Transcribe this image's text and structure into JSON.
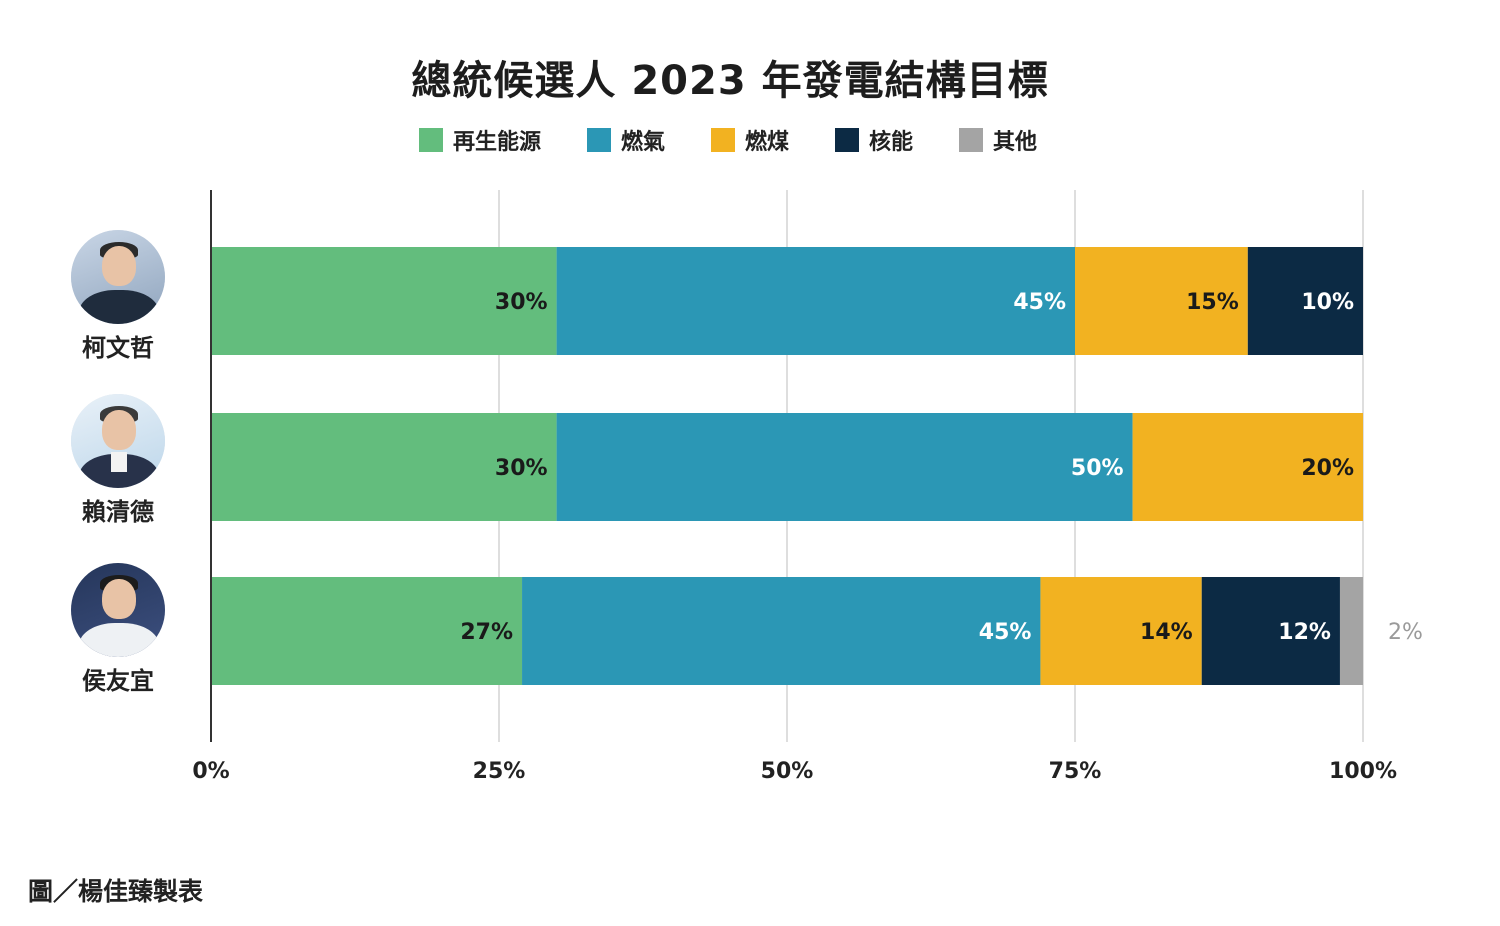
{
  "chart_data": {
    "type": "bar",
    "orientation": "horizontal",
    "stacked": true,
    "title": "總統候選人 2023 年發電結構目標",
    "categories": [
      "柯文哲",
      "賴清德",
      "侯友宜"
    ],
    "series": [
      {
        "name": "再生能源",
        "color": "#63bd7d",
        "values": [
          30,
          30,
          27
        ],
        "labels": [
          "30%",
          "30%",
          "27%"
        ]
      },
      {
        "name": "燃氣",
        "color": "#2b97b5",
        "values": [
          45,
          50,
          45
        ],
        "labels": [
          "45%",
          "50%",
          "45%"
        ]
      },
      {
        "name": "燃煤",
        "color": "#f2b221",
        "values": [
          15,
          20,
          14
        ],
        "labels": [
          "15%",
          "20%",
          "14%"
        ]
      },
      {
        "name": "核能",
        "color": "#0c2a44",
        "values": [
          10,
          0,
          12
        ],
        "labels": [
          "10%",
          "",
          "12%"
        ]
      },
      {
        "name": "其他",
        "color": "#a4a4a4",
        "values": [
          0,
          0,
          2
        ],
        "labels": [
          "",
          "",
          "2%"
        ]
      }
    ],
    "label_colors": {
      "再生能源": "#1a1a1a",
      "燃氣": "#ffffff",
      "燃煤": "#1a1a1a",
      "核能": "#ffffff",
      "其他": "#9a9a9a"
    },
    "xlim": [
      0,
      100
    ],
    "xticks": [
      "0%",
      "25%",
      "50%",
      "75%",
      "100%"
    ],
    "grid": true,
    "legend_position": "top"
  },
  "candidates": [
    {
      "name": "柯文哲",
      "avatar": "portrait-photo"
    },
    {
      "name": "賴清德",
      "avatar": "portrait-photo"
    },
    {
      "name": "侯友宜",
      "avatar": "portrait-photo"
    }
  ],
  "credit": "圖／楊佳臻製表"
}
